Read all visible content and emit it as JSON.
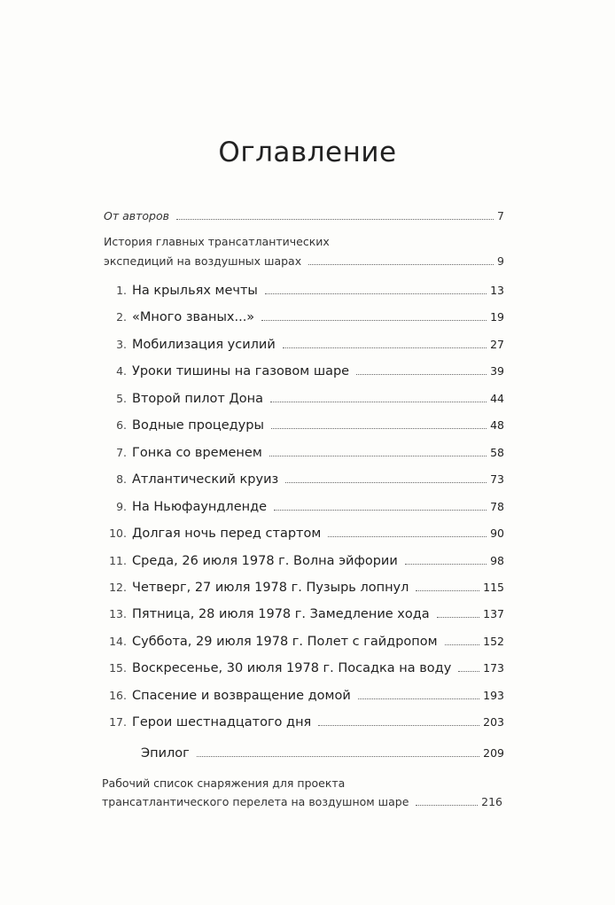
{
  "title": "Оглавление",
  "intro": [
    {
      "title": "От авторов",
      "page": "7"
    }
  ],
  "history": {
    "line1": "История главных трансатлантических",
    "line2": "экспедиций на воздушных шарах",
    "page": "9"
  },
  "chapters": [
    {
      "num": "1.",
      "title": "На крыльях мечты",
      "page": "13"
    },
    {
      "num": "2.",
      "title": "«Много званых...»",
      "page": "19"
    },
    {
      "num": "3.",
      "title": "Мобилизация усилий",
      "page": "27"
    },
    {
      "num": "4.",
      "title": "Уроки тишины на газовом шаре",
      "page": "39"
    },
    {
      "num": "5.",
      "title": "Второй пилот Дона",
      "page": "44"
    },
    {
      "num": "6.",
      "title": "Водные процедуры",
      "page": "48"
    },
    {
      "num": "7.",
      "title": "Гонка со временем",
      "page": "58"
    },
    {
      "num": "8.",
      "title": "Атлантический круиз",
      "page": "73"
    },
    {
      "num": "9.",
      "title": "На Ньюфаундленде",
      "page": "78"
    },
    {
      "num": "10.",
      "title": "Долгая ночь перед стартом",
      "page": "90"
    },
    {
      "num": "11.",
      "title": "Среда, 26 июля 1978 г. Волна эйфории",
      "page": "98"
    },
    {
      "num": "12.",
      "title": "Четверг, 27 июля 1978 г. Пузырь лопнул",
      "page": "115"
    },
    {
      "num": "13.",
      "title": "Пятница, 28 июля 1978 г. Замедление хода",
      "page": "137"
    },
    {
      "num": "14.",
      "title": "Суббота, 29 июля 1978 г. Полет с гайдропом",
      "page": "152"
    },
    {
      "num": "15.",
      "title": "Воскресенье, 30 июля 1978 г. Посадка на воду",
      "page": "173"
    },
    {
      "num": "16.",
      "title": "Спасение и возвращение домой",
      "page": "193"
    },
    {
      "num": "17.",
      "title": "Герои шестнадцатого дня",
      "page": "203"
    }
  ],
  "epilogue": {
    "title": "Эпилог",
    "page": "209"
  },
  "appendix": {
    "line1": "Рабочий список снаряжения для проекта",
    "line2": "трансатлантического перелета на воздушном шаре",
    "page": "216"
  }
}
